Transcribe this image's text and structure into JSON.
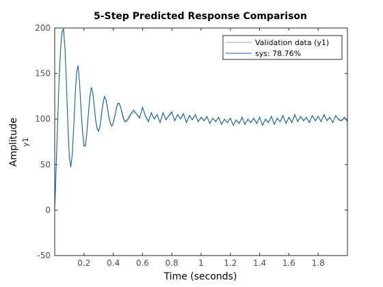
{
  "chart_data": {
    "type": "line",
    "title": "5-Step Predicted Response Comparison",
    "xlabel": "Time (seconds)",
    "ylabel": "Amplitude",
    "channel_label": "y1",
    "xlim": [
      0,
      2
    ],
    "ylim": [
      -50,
      200
    ],
    "xticks": [
      0.2,
      0.4,
      0.6,
      0.8,
      1,
      1.2,
      1.4,
      1.6,
      1.8
    ],
    "xtick_labels": [
      "0.2",
      "0.4",
      "0.6",
      "0.8",
      "1",
      "1.2",
      "1.4",
      "1.6",
      "1.8"
    ],
    "yticks": [
      -50,
      0,
      50,
      100,
      150,
      200
    ],
    "ytick_labels": [
      "-50",
      "0",
      "50",
      "100",
      "150",
      "200"
    ],
    "grid": false,
    "legend_position": "top-right",
    "series": [
      {
        "name": "Validation data (y1)",
        "color": "#a0a0a0",
        "x": [
          0,
          0.01,
          0.02,
          0.03,
          0.04,
          0.05,
          0.06,
          0.07,
          0.08,
          0.09,
          0.1,
          0.11,
          0.12,
          0.13,
          0.14,
          0.15,
          0.16,
          0.17,
          0.18,
          0.19,
          0.2,
          0.21,
          0.22,
          0.23,
          0.24,
          0.25,
          0.26,
          0.27,
          0.28,
          0.29,
          0.3,
          0.31,
          0.32,
          0.33,
          0.34,
          0.35,
          0.36,
          0.37,
          0.38,
          0.39,
          0.4,
          0.41,
          0.42,
          0.43,
          0.44,
          0.45,
          0.46,
          0.47,
          0.48,
          0.49,
          0.5,
          0.52,
          0.54,
          0.56,
          0.58,
          0.6,
          0.62,
          0.64,
          0.66,
          0.68,
          0.7,
          0.72,
          0.74,
          0.76,
          0.78,
          0.8,
          0.82,
          0.84,
          0.86,
          0.88,
          0.9,
          0.92,
          0.94,
          0.96,
          0.98,
          1.0,
          1.02,
          1.04,
          1.06,
          1.08,
          1.1,
          1.12,
          1.14,
          1.16,
          1.18,
          1.2,
          1.22,
          1.24,
          1.26,
          1.28,
          1.3,
          1.32,
          1.34,
          1.36,
          1.38,
          1.4,
          1.42,
          1.44,
          1.46,
          1.48,
          1.5,
          1.52,
          1.54,
          1.56,
          1.58,
          1.6,
          1.62,
          1.64,
          1.66,
          1.68,
          1.7,
          1.72,
          1.74,
          1.76,
          1.78,
          1.8,
          1.82,
          1.84,
          1.86,
          1.88,
          1.9,
          1.92,
          1.94,
          1.96,
          1.98,
          2.0
        ],
        "values": [
          0,
          45,
          95,
          140,
          175,
          195,
          198,
          180,
          140,
          95,
          60,
          48,
          60,
          90,
          125,
          150,
          158,
          140,
          112,
          88,
          72,
          70,
          84,
          104,
          122,
          134,
          130,
          116,
          100,
          90,
          86,
          92,
          104,
          116,
          124,
          122,
          114,
          104,
          96,
          93,
          95,
          102,
          110,
          116,
          118,
          114,
          108,
          102,
          98,
          97,
          99,
          104,
          108,
          106,
          102,
          112,
          104,
          98,
          106,
          101,
          104,
          97,
          106,
          100,
          103,
          107,
          99,
          104,
          101,
          105,
          97,
          103,
          100,
          104,
          98,
          101,
          99,
          102,
          96,
          100,
          98,
          101,
          95,
          99,
          97,
          100,
          94,
          98,
          96,
          101,
          95,
          99,
          97,
          100,
          96,
          101,
          94,
          99,
          97,
          102,
          95,
          100,
          98,
          103,
          96,
          101,
          97,
          104,
          98,
          102,
          99,
          101,
          97,
          103,
          99,
          102,
          98,
          104,
          99,
          101,
          97,
          103,
          100,
          99,
          101,
          98
        ]
      },
      {
        "name": "sys: 78.76%",
        "color": "#0f5f9f",
        "x": [
          0,
          0.01,
          0.02,
          0.03,
          0.04,
          0.05,
          0.06,
          0.07,
          0.08,
          0.09,
          0.1,
          0.11,
          0.12,
          0.13,
          0.14,
          0.15,
          0.16,
          0.17,
          0.18,
          0.19,
          0.2,
          0.21,
          0.22,
          0.23,
          0.24,
          0.25,
          0.26,
          0.27,
          0.28,
          0.29,
          0.3,
          0.31,
          0.32,
          0.33,
          0.34,
          0.35,
          0.36,
          0.37,
          0.38,
          0.39,
          0.4,
          0.41,
          0.42,
          0.43,
          0.44,
          0.45,
          0.46,
          0.47,
          0.48,
          0.49,
          0.5,
          0.52,
          0.54,
          0.56,
          0.58,
          0.6,
          0.62,
          0.64,
          0.66,
          0.68,
          0.7,
          0.72,
          0.74,
          0.76,
          0.78,
          0.8,
          0.82,
          0.84,
          0.86,
          0.88,
          0.9,
          0.92,
          0.94,
          0.96,
          0.98,
          1.0,
          1.02,
          1.04,
          1.06,
          1.08,
          1.1,
          1.12,
          1.14,
          1.16,
          1.18,
          1.2,
          1.22,
          1.24,
          1.26,
          1.28,
          1.3,
          1.32,
          1.34,
          1.36,
          1.38,
          1.4,
          1.42,
          1.44,
          1.46,
          1.48,
          1.5,
          1.52,
          1.54,
          1.56,
          1.58,
          1.6,
          1.62,
          1.64,
          1.66,
          1.68,
          1.7,
          1.72,
          1.74,
          1.76,
          1.78,
          1.8,
          1.82,
          1.84,
          1.86,
          1.88,
          1.9,
          1.92,
          1.94,
          1.96,
          1.98,
          2.0
        ],
        "values": [
          2,
          48,
          98,
          143,
          178,
          196,
          199,
          178,
          138,
          93,
          58,
          47,
          62,
          92,
          127,
          152,
          159,
          139,
          110,
          86,
          70,
          71,
          86,
          106,
          124,
          135,
          129,
          114,
          98,
          89,
          87,
          93,
          106,
          118,
          125,
          121,
          112,
          102,
          95,
          92,
          96,
          103,
          111,
          117,
          117,
          113,
          106,
          100,
          97,
          98,
          100,
          106,
          110,
          105,
          101,
          113,
          103,
          97,
          107,
          100,
          105,
          96,
          107,
          99,
          104,
          108,
          98,
          105,
          100,
          106,
          96,
          104,
          99,
          105,
          97,
          102,
          98,
          103,
          95,
          101,
          97,
          102,
          94,
          100,
          96,
          101,
          93,
          99,
          95,
          102,
          94,
          100,
          96,
          101,
          95,
          102,
          93,
          100,
          96,
          103,
          94,
          101,
          97,
          104,
          95,
          102,
          96,
          105,
          97,
          103,
          98,
          102,
          96,
          104,
          98,
          103,
          97,
          105,
          98,
          102,
          96,
          104,
          99,
          98,
          102,
          97
        ]
      }
    ]
  }
}
